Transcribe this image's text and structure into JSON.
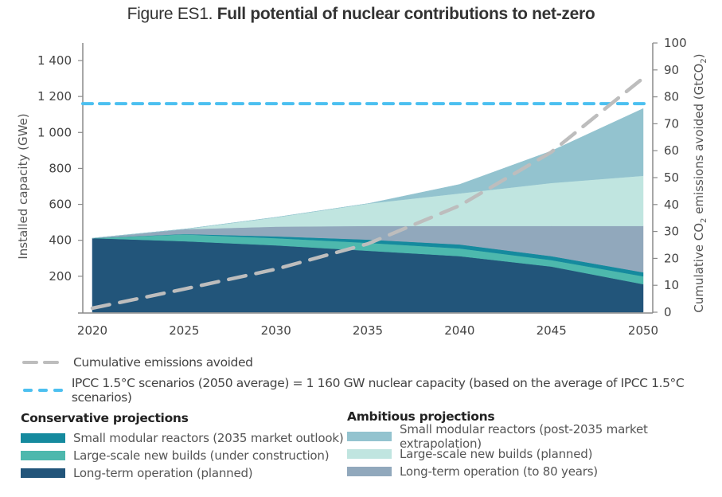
{
  "title": {
    "prefix": "Figure ES1.",
    "main": "Full potential of nuclear contributions to net-zero"
  },
  "chart_data": {
    "type": "area",
    "title": "Figure ES1. Full potential of nuclear contributions to net-zero",
    "x": [
      2020,
      2025,
      2030,
      2035,
      2040,
      2045,
      2050
    ],
    "x_tick_labels": [
      "2020",
      "2025",
      "2030",
      "2035",
      "2040",
      "2045",
      "2050"
    ],
    "ylabel": "Installed capacity (GWe)",
    "ylim": [
      0,
      1500
    ],
    "y_ticks": [
      200,
      400,
      600,
      800,
      1000,
      1200,
      1400
    ],
    "y_tick_labels": [
      "200",
      "400",
      "600",
      "800",
      "1 000",
      "1 200",
      "1 400"
    ],
    "y2label_parts": [
      "Cumulative CO",
      "2",
      " emissions avoided (GtCO",
      "2",
      ")"
    ],
    "y2lim": [
      0,
      100
    ],
    "y2_ticks": [
      0,
      10,
      20,
      30,
      40,
      50,
      60,
      70,
      80,
      90,
      100
    ],
    "y2_tick_labels": [
      "0",
      "10",
      "20",
      "30",
      "40",
      "50",
      "60",
      "70",
      "80",
      "90",
      "100"
    ],
    "stacked_series_cumulative_top_gw": [
      {
        "name": "Long-term operation (planned)",
        "group": "conservative",
        "color": "#22557a",
        "top": [
          412,
          395,
          372,
          342,
          312,
          254,
          156
        ]
      },
      {
        "name": "Large-scale new builds (under construction)",
        "group": "conservative",
        "color": "#4db8ad",
        "top": [
          412,
          433,
          412,
          386,
          355,
          290,
          200
        ]
      },
      {
        "name": "Small modular reactors (2035 market outlook)",
        "group": "conservative",
        "color": "#158a9e",
        "top": [
          412,
          435,
          422,
          404,
          377,
          312,
          222
        ]
      },
      {
        "name": "Long-term operation (to 80 years)",
        "group": "ambitious",
        "color": "#91a8bc",
        "top": [
          412,
          462,
          476,
          480,
          480,
          480,
          480
        ]
      },
      {
        "name": "Large-scale new builds (planned)",
        "group": "ambitious",
        "color": "#c0e5e0",
        "top": [
          412,
          462,
          528,
          604,
          661,
          719,
          759
        ]
      },
      {
        "name": "Small modular reactors (post-2035 market extrapolation)",
        "group": "ambitious",
        "color": "#93c3cf",
        "top": [
          412,
          462,
          528,
          604,
          711,
          897,
          1133
        ]
      }
    ],
    "lines": [
      {
        "name": "Cumulative emissions avoided",
        "axis": "right",
        "style": "dashed",
        "color": "#bdbdbd",
        "values": [
          1.5,
          8.6,
          16,
          25.4,
          39.6,
          59.5,
          87
        ]
      },
      {
        "name": "IPCC 1.5°C scenarios (2050 average) = 1 160 GW nuclear capacity (based on the average of IPCC 1.5°C scenarios)",
        "axis": "left",
        "style": "dashed",
        "color": "#4cc0f0",
        "value": 1160
      }
    ],
    "legend_placement": "bottom"
  },
  "legend": {
    "lines": [
      {
        "label": "Cumulative emissions avoided",
        "color": "#bdbdbd"
      },
      {
        "label": "IPCC 1.5°C scenarios (2050 average) = 1 160 GW nuclear capacity (based on the average of IPCC 1.5°C scenarios)",
        "color": "#4cc0f0"
      }
    ],
    "conservative": {
      "heading": "Conservative projections",
      "items": [
        {
          "label": "Small modular reactors (2035 market outlook)",
          "color": "#158a9e"
        },
        {
          "label": "Large-scale new builds (under construction)",
          "color": "#4db8ad"
        },
        {
          "label": "Long-term operation (planned)",
          "color": "#22557a"
        }
      ]
    },
    "ambitious": {
      "heading": "Ambitious projections",
      "items": [
        {
          "label": "Small modular reactors (post-2035 market extrapolation)",
          "color": "#93c3cf"
        },
        {
          "label": "Large-scale new builds (planned)",
          "color": "#c0e5e0"
        },
        {
          "label": "Long-term operation (to 80 years)",
          "color": "#91a8bc"
        }
      ]
    }
  }
}
